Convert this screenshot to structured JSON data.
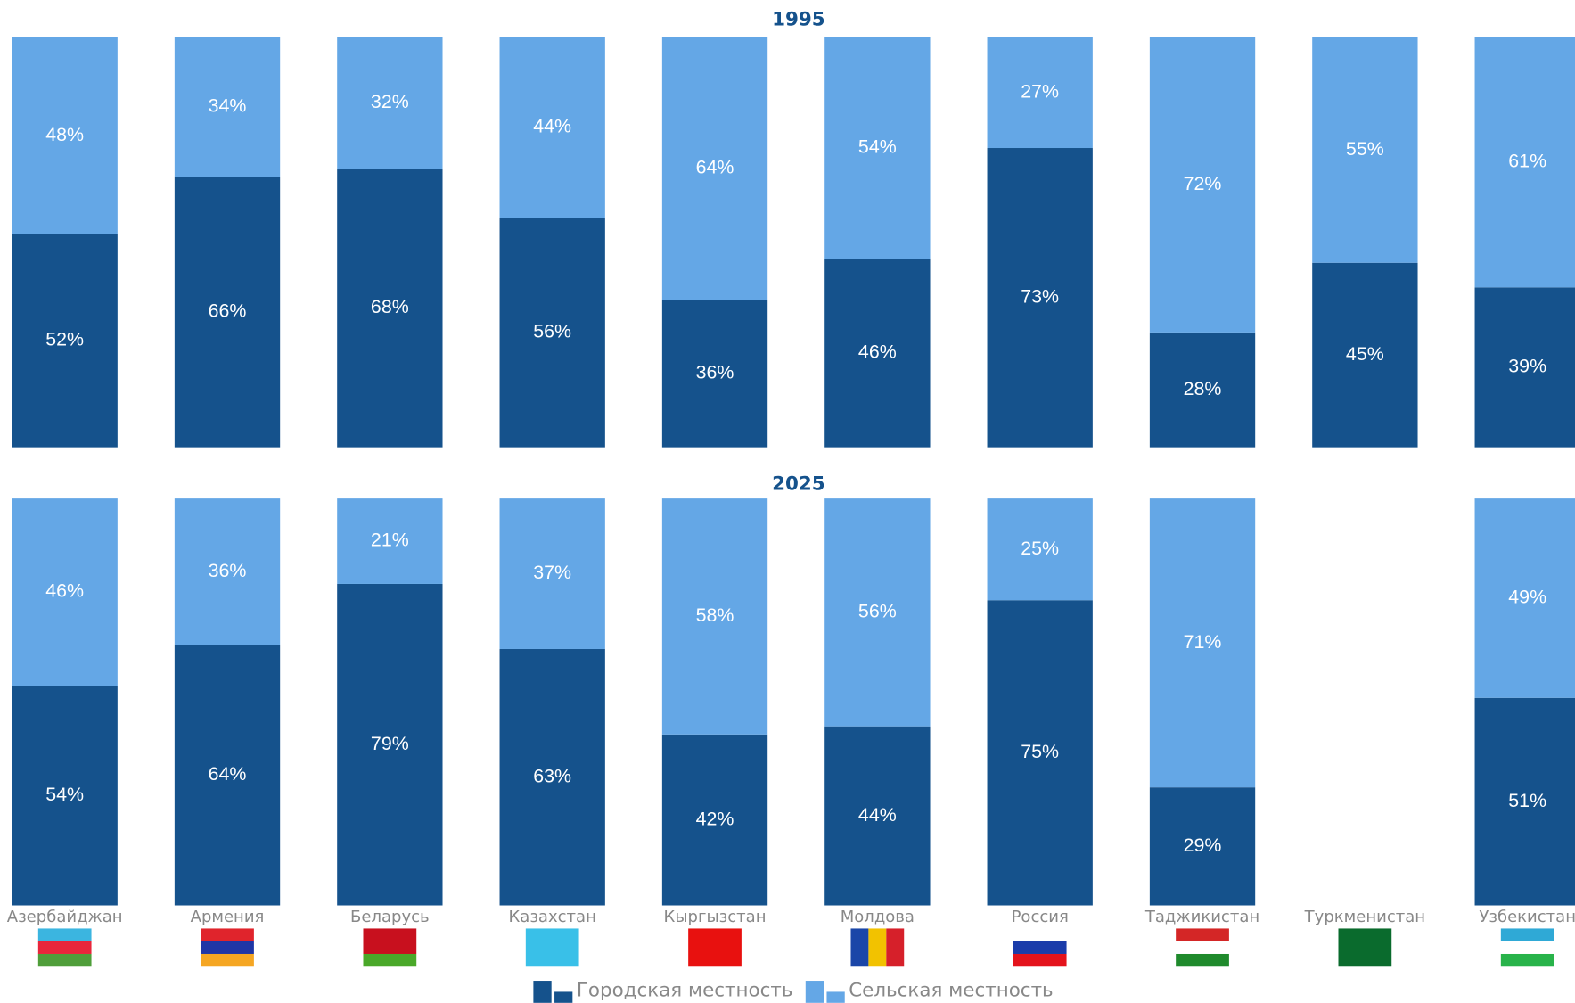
{
  "chart_data": [
    {
      "type": "bar",
      "stacked": true,
      "title": "1995",
      "categories": [
        "Азербайджан",
        "Армения",
        "Беларусь",
        "Казахстан",
        "Кыргызстан",
        "Молдова",
        "Россия",
        "Таджикистан",
        "Туркменистан",
        "Узбекистан"
      ],
      "ylim": [
        0,
        100
      ],
      "series": [
        {
          "name": "Городская местность",
          "color": "#15528c",
          "values": [
            52,
            66,
            68,
            56,
            36,
            46,
            73,
            28,
            45,
            39
          ],
          "value_labels": [
            "52%",
            "66%",
            "68%",
            "56%",
            "36%",
            "46%",
            "73%",
            "28%",
            "45%",
            "39%"
          ]
        },
        {
          "name": "Сельская местность",
          "color": "#64a7e6",
          "values": [
            48,
            34,
            32,
            44,
            64,
            54,
            27,
            72,
            55,
            61
          ],
          "value_labels": [
            "48%",
            "34%",
            "32%",
            "44%",
            "64%",
            "54%",
            "27%",
            "72%",
            "55%",
            "61%"
          ]
        }
      ]
    },
    {
      "type": "bar",
      "stacked": true,
      "title": "2025",
      "categories": [
        "Азербайджан",
        "Армения",
        "Беларусь",
        "Казахстан",
        "Кыргызстан",
        "Молдова",
        "Россия",
        "Таджикистан",
        "Туркменистан",
        "Узбекистан"
      ],
      "ylim": [
        0,
        100
      ],
      "series": [
        {
          "name": "Городская местность",
          "color": "#15528c",
          "values": [
            54,
            64,
            79,
            63,
            42,
            44,
            75,
            29,
            null,
            51
          ],
          "value_labels": [
            "54%",
            "64%",
            "79%",
            "63%",
            "42%",
            "44%",
            "75%",
            "29%",
            null,
            "51%"
          ]
        },
        {
          "name": "Сельская местность",
          "color": "#64a7e6",
          "values": [
            46,
            36,
            21,
            37,
            58,
            56,
            25,
            71,
            null,
            49
          ],
          "value_labels": [
            "46%",
            "36%",
            "21%",
            "37%",
            "58%",
            "56%",
            "25%",
            "71%",
            null,
            "49%"
          ]
        }
      ]
    }
  ]
}
